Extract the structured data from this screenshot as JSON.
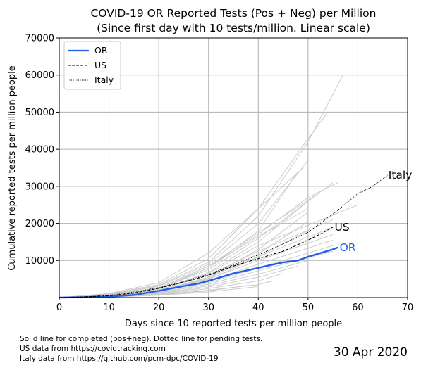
{
  "colors": {
    "or_line": "#1f5fe6",
    "background_lines": "#cccccc",
    "grid": "#b0b0b0"
  },
  "chart_data": {
    "type": "line",
    "title_lines": [
      "COVID-19 OR Reported Tests (Pos + Neg) per Million",
      "(Since first day with 10 tests/million. Linear scale)"
    ],
    "xlabel": "Days since 10 reported tests per million people",
    "ylabel": "Cumulative reported tests per million people",
    "xlim": [
      0,
      70
    ],
    "ylim": [
      0,
      70000
    ],
    "xticks": [
      0,
      10,
      20,
      30,
      40,
      50,
      60,
      70
    ],
    "yticks": [
      10000,
      20000,
      30000,
      40000,
      50000,
      60000,
      70000
    ],
    "ytick_labels": [
      "10000",
      "20000",
      "30000",
      "40000",
      "50000",
      "60000",
      "70000"
    ],
    "grid": true,
    "legend_position": "top-left",
    "legend": [
      {
        "name": "OR",
        "style": "solid"
      },
      {
        "name": "US",
        "style": "dashed"
      },
      {
        "name": "Italy",
        "style": "dotted"
      }
    ],
    "series": [
      {
        "name": "OR",
        "style": "solid",
        "color": "#1f5fe6",
        "x": [
          0,
          5,
          10,
          15,
          20,
          25,
          28,
          30,
          35,
          40,
          45,
          48,
          50,
          53,
          55,
          56
        ],
        "y": [
          0,
          100,
          250,
          700,
          1800,
          3100,
          3800,
          4500,
          6500,
          8000,
          9500,
          10000,
          11000,
          12200,
          13000,
          13500
        ]
      },
      {
        "name": "US",
        "style": "dashed",
        "color": "#000000",
        "x": [
          0,
          5,
          10,
          15,
          20,
          25,
          30,
          35,
          40,
          45,
          50,
          53,
          55
        ],
        "y": [
          0,
          150,
          500,
          1200,
          2500,
          4200,
          6000,
          8500,
          10500,
          12500,
          15500,
          17500,
          19000
        ]
      },
      {
        "name": "Italy",
        "style": "dotted",
        "color": "#000000",
        "x": [
          0,
          5,
          10,
          15,
          20,
          25,
          30,
          35,
          40,
          45,
          50,
          55,
          60,
          63,
          66
        ],
        "y": [
          0,
          200,
          600,
          1500,
          2700,
          4300,
          6300,
          8800,
          11500,
          14500,
          17600,
          22500,
          28000,
          30000,
          33000
        ]
      }
    ],
    "background_series": [
      {
        "x": [
          0,
          10,
          20,
          30,
          40,
          50,
          57
        ],
        "y": [
          0,
          900,
          3200,
          9500,
          22000,
          42000,
          60000
        ]
      },
      {
        "x": [
          0,
          10,
          20,
          30,
          40,
          49,
          54
        ],
        "y": [
          0,
          1000,
          3500,
          10500,
          24000,
          41000,
          50000
        ]
      },
      {
        "x": [
          0,
          10,
          20,
          30,
          40,
          50
        ],
        "y": [
          0,
          800,
          3000,
          9000,
          20000,
          37000
        ]
      },
      {
        "x": [
          0,
          10,
          20,
          30,
          40,
          48
        ],
        "y": [
          0,
          700,
          2600,
          8000,
          18000,
          34000
        ]
      },
      {
        "x": [
          0,
          10,
          20,
          30,
          40,
          49
        ],
        "y": [
          0,
          1100,
          4000,
          12000,
          24000,
          35000
        ]
      },
      {
        "x": [
          0,
          10,
          20,
          30,
          40,
          55
        ],
        "y": [
          0,
          600,
          2400,
          7500,
          16000,
          31000
        ]
      },
      {
        "x": [
          0,
          10,
          20,
          30,
          40,
          52
        ],
        "y": [
          0,
          650,
          2600,
          8500,
          17500,
          28000
        ]
      },
      {
        "x": [
          0,
          10,
          20,
          30,
          40,
          60
        ],
        "y": [
          0,
          550,
          2000,
          6500,
          14000,
          25000
        ]
      },
      {
        "x": [
          0,
          10,
          20,
          30,
          40,
          55
        ],
        "y": [
          0,
          500,
          2000,
          6000,
          12500,
          21000
        ]
      },
      {
        "x": [
          0,
          10,
          20,
          30,
          40,
          55
        ],
        "y": [
          0,
          450,
          1800,
          5500,
          11000,
          19000
        ]
      },
      {
        "x": [
          0,
          10,
          20,
          30,
          40,
          55
        ],
        "y": [
          0,
          400,
          1600,
          5000,
          10000,
          17000
        ]
      },
      {
        "x": [
          0,
          10,
          20,
          30,
          40,
          55
        ],
        "y": [
          0,
          350,
          1500,
          4500,
          9000,
          15500
        ]
      },
      {
        "x": [
          0,
          10,
          20,
          30,
          40,
          55
        ],
        "y": [
          0,
          300,
          1300,
          4000,
          8000,
          14000
        ]
      },
      {
        "x": [
          0,
          10,
          20,
          30,
          40,
          55
        ],
        "y": [
          0,
          280,
          1200,
          3600,
          7200,
          12500
        ]
      },
      {
        "x": [
          0,
          10,
          20,
          30,
          40,
          50
        ],
        "y": [
          0,
          250,
          1000,
          3200,
          6300,
          10000
        ]
      },
      {
        "x": [
          0,
          10,
          20,
          30,
          40,
          48
        ],
        "y": [
          0,
          220,
          900,
          2800,
          5500,
          8500
        ]
      },
      {
        "x": [
          0,
          10,
          20,
          30,
          40,
          45
        ],
        "y": [
          0,
          200,
          800,
          2400,
          4500,
          6500
        ]
      },
      {
        "x": [
          0,
          10,
          20,
          30,
          40,
          43
        ],
        "y": [
          0,
          180,
          700,
          2000,
          3500,
          4500
        ]
      },
      {
        "x": [
          0,
          10,
          20,
          30,
          40
        ],
        "y": [
          0,
          150,
          600,
          1500,
          3000
        ]
      },
      {
        "x": [
          0,
          10,
          20,
          30,
          38
        ],
        "y": [
          0,
          200,
          700,
          1800,
          3300
        ]
      },
      {
        "x": [
          0,
          10,
          20,
          30,
          40,
          50
        ],
        "y": [
          0,
          300,
          1500,
          5500,
          13000,
          23000
        ]
      },
      {
        "x": [
          0,
          10,
          20,
          30,
          40,
          50
        ],
        "y": [
          0,
          400,
          1900,
          6800,
          15000,
          26000
        ]
      },
      {
        "x": [
          0,
          10,
          20,
          30,
          40,
          50,
          56
        ],
        "y": [
          0,
          500,
          2200,
          8000,
          17000,
          27000,
          31000
        ]
      },
      {
        "x": [
          0,
          10,
          20,
          30,
          40,
          50
        ],
        "y": [
          0,
          600,
          2600,
          8500,
          16500,
          24000
        ]
      },
      {
        "x": [
          0,
          10,
          20,
          30,
          40,
          50
        ],
        "y": [
          0,
          350,
          1700,
          4800,
          11000,
          18000
        ]
      },
      {
        "x": [
          0,
          10,
          20,
          30,
          40,
          50
        ],
        "y": [
          0,
          380,
          1750,
          5200,
          11800,
          20500
        ]
      }
    ],
    "end_labels": [
      {
        "text": "Italy",
        "x": 66,
        "y": 33000,
        "color": "#000000"
      },
      {
        "text": "US",
        "x": 55.2,
        "y": 19000,
        "color": "#000000"
      },
      {
        "text": "OR",
        "x": 56.2,
        "y": 13500,
        "color": "#1f5fe6"
      }
    ]
  },
  "footnotes": [
    "Solid line for completed (pos+neg). Dotted line for pending tests.",
    "US data from https://covidtracking.com",
    "Italy data from https://github.com/pcm-dpc/COVID-19"
  ],
  "date_stamp": "30 Apr 2020"
}
